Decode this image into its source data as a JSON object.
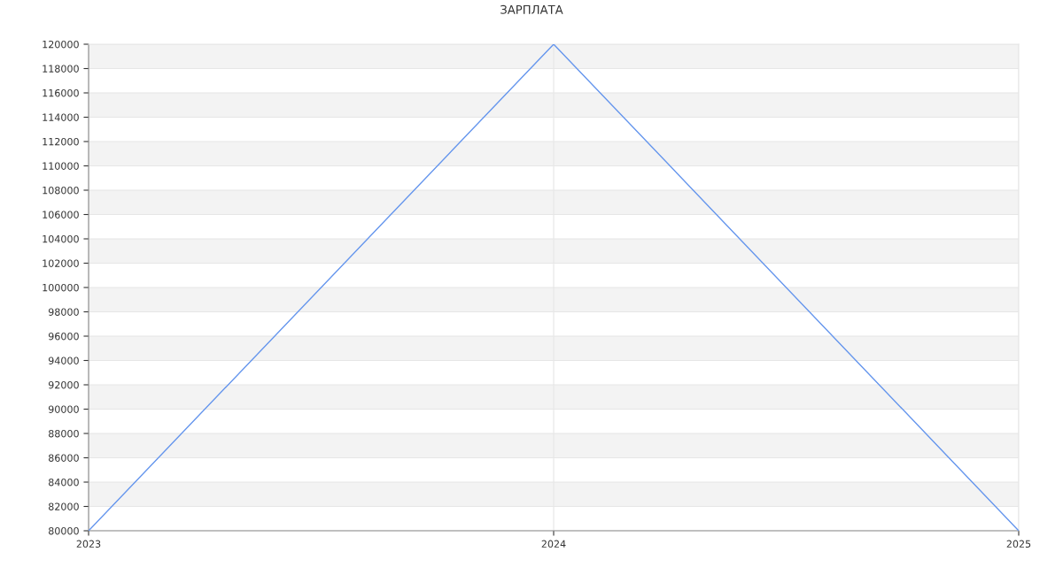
{
  "chart_data": {
    "type": "line",
    "title": "ЗАРПЛАТА",
    "x": [
      2023,
      2024,
      2025
    ],
    "series": [
      {
        "color": "#6495ed",
        "values": [
          80000,
          120000,
          80000
        ]
      }
    ],
    "xlim": [
      2023,
      2025
    ],
    "xticks": [
      2023,
      2024,
      2025
    ],
    "ylim": [
      80000,
      120000
    ],
    "yticks": [
      80000,
      82000,
      84000,
      86000,
      88000,
      90000,
      92000,
      94000,
      96000,
      98000,
      100000,
      102000,
      104000,
      106000,
      108000,
      110000,
      112000,
      114000,
      116000,
      118000,
      120000
    ],
    "bands": [
      {
        "axis": "y",
        "from": 82000,
        "to": 84000,
        "color": "#f3f3f3"
      },
      {
        "axis": "y",
        "from": 86000,
        "to": 88000,
        "color": "#f3f3f3"
      },
      {
        "axis": "y",
        "from": 90000,
        "to": 92000,
        "color": "#f3f3f3"
      },
      {
        "axis": "y",
        "from": 94000,
        "to": 96000,
        "color": "#f3f3f3"
      },
      {
        "axis": "y",
        "from": 98000,
        "to": 100000,
        "color": "#f3f3f3"
      },
      {
        "axis": "y",
        "from": 102000,
        "to": 104000,
        "color": "#f3f3f3"
      },
      {
        "axis": "y",
        "from": 106000,
        "to": 108000,
        "color": "#f3f3f3"
      },
      {
        "axis": "y",
        "from": 110000,
        "to": 112000,
        "color": "#f3f3f3"
      },
      {
        "axis": "y",
        "from": 114000,
        "to": 116000,
        "color": "#f3f3f3"
      },
      {
        "axis": "y",
        "from": 118000,
        "to": 120000,
        "color": "#f3f3f3"
      }
    ],
    "grid": true,
    "marker": "none",
    "line_style": "solid"
  }
}
